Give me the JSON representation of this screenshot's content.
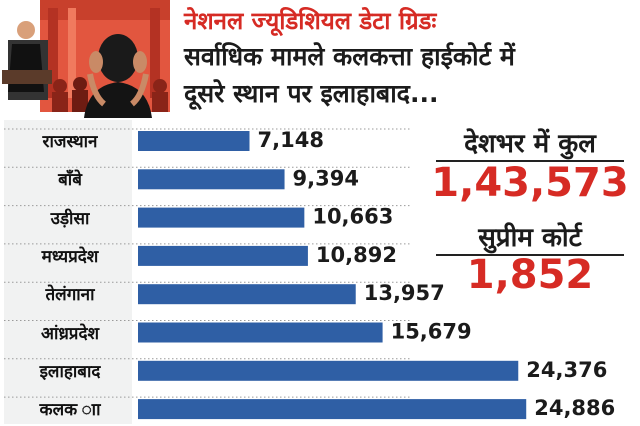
{
  "headline": {
    "line1": "नेशनल ज्यूडिशियल डेटा ग्रिडः",
    "line2": "सर्वाधिक मामले कलकत्ता हाईकोर्ट में",
    "line3": "दूसरे स्थान पर इलाहाबाद..."
  },
  "illustration": {
    "icon": "judge-courtroom-illustration"
  },
  "totals": {
    "country": {
      "label": "देशभर में कुल",
      "value": "1,43,573"
    },
    "supreme": {
      "label": "सुप्रीम कोर्ट",
      "value": "1,852"
    }
  },
  "colors": {
    "bar": "#2f5fa5",
    "accent": "#d62b24",
    "text": "#1b1b1b",
    "label_panel": "#f1f2f2"
  },
  "chart_data": {
    "type": "bar",
    "orientation": "horizontal",
    "categories": [
      "राजस्थान",
      "बॉंबे",
      "उड़ीसा",
      "मध्यप्रदेश",
      "तेलंगाना",
      "आंध्रप्रदेश",
      "इलाहाबाद",
      "कलक ाा"
    ],
    "values": [
      7148,
      9394,
      10663,
      10892,
      13957,
      15679,
      24376,
      24886
    ],
    "value_labels": [
      "7,148",
      "9,394",
      "10,663",
      "10,892",
      "13,957",
      "15,679",
      "24,376",
      "24,886"
    ],
    "xlim": [
      0,
      25000
    ],
    "grid": "horizontal-dotted"
  }
}
